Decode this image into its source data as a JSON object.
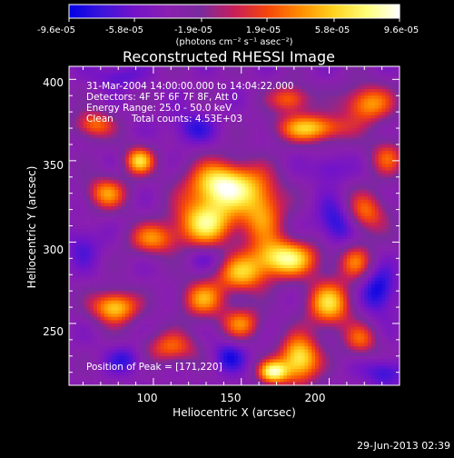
{
  "chart_data": {
    "type": "heatmap",
    "title": "Reconstructed RHESSI Image",
    "xlabel": "Heliocentric X (arcsec)",
    "ylabel": "Heliocentric Y (arcsec)",
    "xlim": [
      52,
      240
    ],
    "ylim": [
      212,
      408
    ],
    "x_ticks": [
      100,
      150,
      200
    ],
    "y_ticks": [
      250,
      300,
      350,
      400
    ],
    "colorbar": {
      "units": "(photons cm⁻² s⁻¹ asec⁻²)",
      "min": -9.6e-05,
      "max": 9.6e-05,
      "tick_labels": [
        "-9.6e-05",
        "-5.8e-05",
        "-1.9e-05",
        "1.9e-05",
        "5.8e-05",
        "9.6e-05"
      ],
      "tick_values": [
        -9.6e-05,
        -5.8e-05,
        -1.9e-05,
        1.9e-05,
        5.8e-05,
        9.6e-05
      ]
    },
    "annotations": {
      "time_range": "31-Mar-2004 14:00:00.000 to 14:04:22.000",
      "detectors": "Detectors: 4F 5F 6F 7F 8F, Att 0",
      "energy": "Energy Range: 25.0 - 50.0 keV",
      "method": "Clean",
      "counts": "Total counts: 4.53E+03",
      "peak": "Position of Peak = [171,220]"
    },
    "peak_position": [
      171,
      220
    ],
    "blobs": [
      {
        "x": 140,
        "y": 335,
        "sx": 14,
        "sy": 10,
        "v": 1.0
      },
      {
        "x": 130,
        "y": 312,
        "sx": 12,
        "sy": 10,
        "v": 0.85
      },
      {
        "x": 162,
        "y": 318,
        "sx": 9,
        "sy": 14,
        "v": 0.6
      },
      {
        "x": 190,
        "y": 370,
        "sx": 14,
        "sy": 6,
        "v": 0.75
      },
      {
        "x": 222,
        "y": 385,
        "sx": 10,
        "sy": 8,
        "v": 0.65
      },
      {
        "x": 178,
        "y": 388,
        "sx": 8,
        "sy": 6,
        "v": 0.55
      },
      {
        "x": 92,
        "y": 350,
        "sx": 6,
        "sy": 6,
        "v": 0.75
      },
      {
        "x": 66,
        "y": 372,
        "sx": 8,
        "sy": 6,
        "v": 0.55
      },
      {
        "x": 73,
        "y": 330,
        "sx": 8,
        "sy": 7,
        "v": 0.6
      },
      {
        "x": 100,
        "y": 302,
        "sx": 10,
        "sy": 7,
        "v": 0.55
      },
      {
        "x": 175,
        "y": 290,
        "sx": 13,
        "sy": 8,
        "v": 0.9
      },
      {
        "x": 150,
        "y": 280,
        "sx": 10,
        "sy": 8,
        "v": 0.65
      },
      {
        "x": 128,
        "y": 265,
        "sx": 9,
        "sy": 8,
        "v": 0.6
      },
      {
        "x": 78,
        "y": 260,
        "sx": 9,
        "sy": 7,
        "v": 0.8
      },
      {
        "x": 110,
        "y": 235,
        "sx": 11,
        "sy": 7,
        "v": 0.5
      },
      {
        "x": 183,
        "y": 228,
        "sx": 8,
        "sy": 10,
        "v": 0.9
      },
      {
        "x": 168,
        "y": 220,
        "sx": 6,
        "sy": 5,
        "v": 0.85
      },
      {
        "x": 200,
        "y": 262,
        "sx": 9,
        "sy": 10,
        "v": 0.75
      },
      {
        "x": 220,
        "y": 318,
        "sx": 9,
        "sy": 9,
        "v": 0.55
      },
      {
        "x": 215,
        "y": 288,
        "sx": 7,
        "sy": 8,
        "v": 0.5
      },
      {
        "x": 218,
        "y": 240,
        "sx": 7,
        "sy": 7,
        "v": 0.45
      },
      {
        "x": 233,
        "y": 352,
        "sx": 7,
        "sy": 8,
        "v": 0.45
      },
      {
        "x": 150,
        "y": 250,
        "sx": 8,
        "sy": 7,
        "v": 0.55
      },
      {
        "x": 80,
        "y": 402,
        "sx": 10,
        "sy": 5,
        "v": -0.25
      },
      {
        "x": 122,
        "y": 370,
        "sx": 9,
        "sy": 7,
        "v": -0.3
      },
      {
        "x": 60,
        "y": 298,
        "sx": 7,
        "sy": 9,
        "v": -0.25
      },
      {
        "x": 205,
        "y": 312,
        "sx": 8,
        "sy": 10,
        "v": -0.45
      },
      {
        "x": 130,
        "y": 290,
        "sx": 7,
        "sy": 5,
        "v": -0.2
      },
      {
        "x": 143,
        "y": 230,
        "sx": 7,
        "sy": 7,
        "v": -0.35
      },
      {
        "x": 228,
        "y": 270,
        "sx": 7,
        "sy": 10,
        "v": -0.45
      },
      {
        "x": 200,
        "y": 345,
        "sx": 7,
        "sy": 6,
        "v": -0.25
      },
      {
        "x": 85,
        "y": 228,
        "sx": 8,
        "sy": 6,
        "v": -0.3
      },
      {
        "x": 232,
        "y": 220,
        "sx": 8,
        "sy": 6,
        "v": -0.35
      }
    ]
  },
  "footer": {
    "date": "29-Jun-2013 02:39"
  },
  "colors": {
    "background": "#000000",
    "text": "#ffffff",
    "colormap": [
      "#0000e6",
      "#3c14dc",
      "#7514c8",
      "#8a1fb0",
      "#7a2a9e",
      "#c81e5a",
      "#f5460a",
      "#ff8c00",
      "#ffd21e",
      "#ffff78",
      "#ffffff"
    ]
  }
}
